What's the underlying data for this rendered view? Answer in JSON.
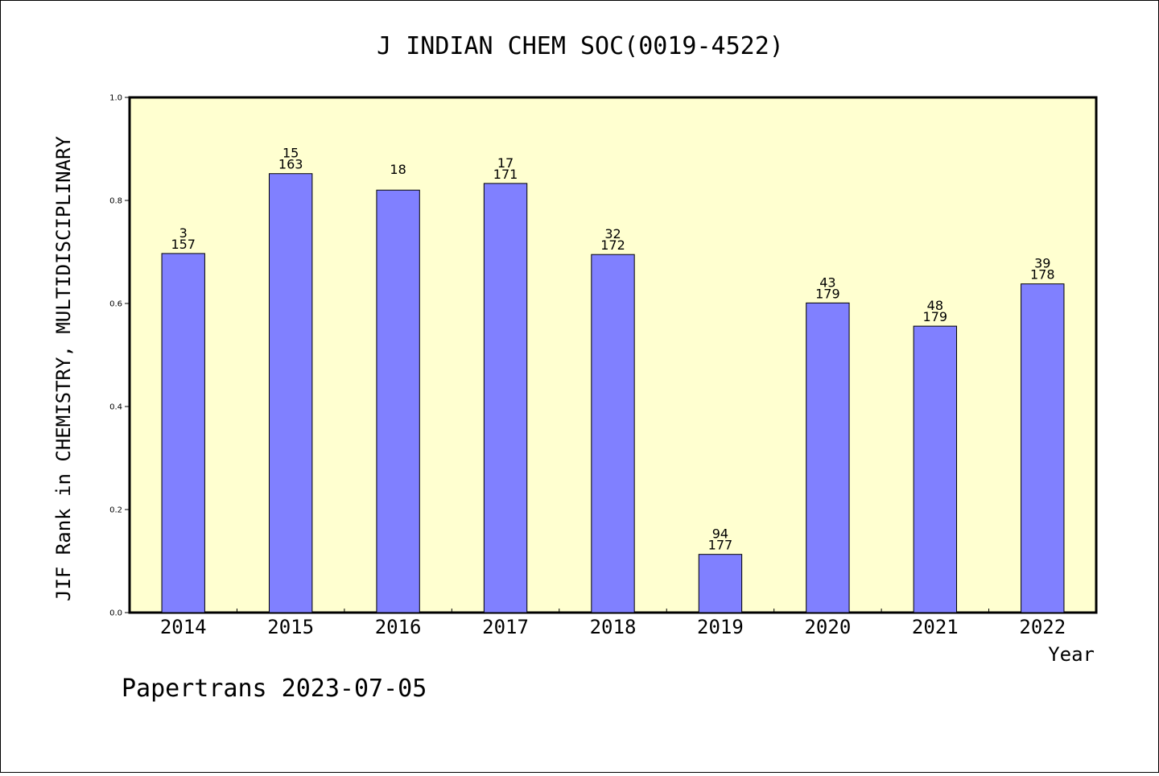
{
  "chart_data": {
    "type": "bar",
    "title": "J INDIAN CHEM SOC(0019-4522)",
    "xlabel": "Year",
    "ylabel": "JIF Rank in CHEMISTRY, MULTIDISCIPLINARY",
    "categories": [
      "2014",
      "2015",
      "2016",
      "2017",
      "2018",
      "2019",
      "2020",
      "2021",
      "2022"
    ],
    "values": [
      0.697,
      0.852,
      0.82,
      0.833,
      0.695,
      0.113,
      0.601,
      0.556,
      0.638
    ],
    "label_top": [
      "3",
      "15",
      "18",
      "17",
      "32",
      "94",
      "43",
      "48",
      "39"
    ],
    "label_bottom": [
      "157",
      "163",
      "",
      "171",
      "172",
      "177",
      "179",
      "179",
      "178"
    ],
    "ylim": [
      0,
      1.0
    ],
    "yticks": [
      "0.0",
      "0.2",
      "0.4",
      "0.6",
      "0.8",
      "1.0"
    ],
    "bar_color": "#8080ff",
    "plot_background": "#ffffd0",
    "grid": false,
    "legend": "none"
  },
  "footer": "Papertrans 2023-07-05"
}
